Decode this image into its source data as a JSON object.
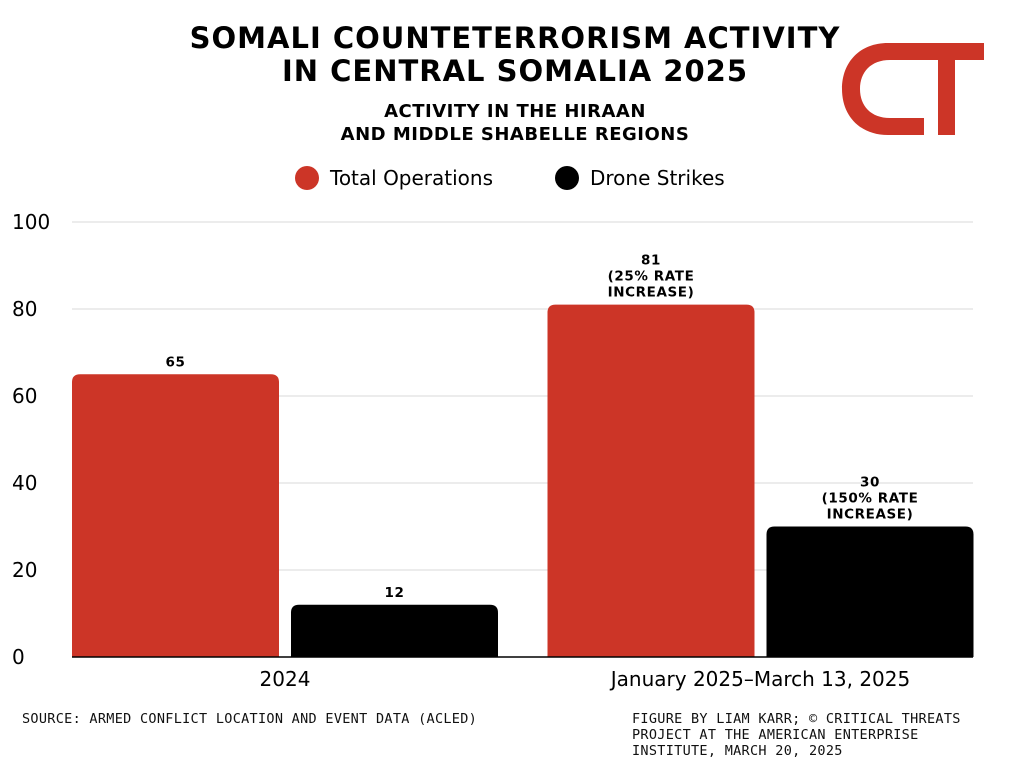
{
  "header": {
    "title_lines": [
      "SOMALI COUNTETERRORISM ACTIVITY",
      "IN CENTRAL SOMALIA 2025"
    ],
    "subtitle_lines": [
      "ACTIVITY IN THE HIRAAN",
      "AND MIDDLE SHABELLE REGIONS"
    ],
    "logo_text": "CT"
  },
  "colors": {
    "total_operations": "#cc3527",
    "drone_strikes": "#000000",
    "gridline": "#d9d9d9",
    "logo": "#cc3527"
  },
  "chart_data": {
    "type": "bar",
    "title": "SOMALI COUNTETERRORISM ACTIVITY IN CENTRAL SOMALIA 2025",
    "subtitle": "ACTIVITY IN THE HIRAAN AND MIDDLE SHABELLE REGIONS",
    "categories": [
      "2024",
      "January 2025–March 13, 2025"
    ],
    "series": [
      {
        "name": "Total Operations",
        "color": "#cc3527",
        "values": [
          65,
          81
        ],
        "labels": [
          [
            "65"
          ],
          [
            "81",
            "(25% RATE",
            "INCREASE)"
          ]
        ]
      },
      {
        "name": "Drone Strikes",
        "color": "#000000",
        "values": [
          12,
          30
        ],
        "labels": [
          [
            "12"
          ],
          [
            "30",
            "(150% RATE",
            "INCREASE)"
          ]
        ]
      }
    ],
    "ylim": [
      0,
      100
    ],
    "yticks": [
      0,
      20,
      40,
      60,
      80,
      100
    ],
    "xlabel": "",
    "ylabel": "",
    "grid": true,
    "legend_position": "top-center"
  },
  "footer": {
    "source": "SOURCE: ARMED CONFLICT LOCATION AND EVENT DATA (ACLED)",
    "credit_lines": [
      "FIGURE BY LIAM KARR; © CRITICAL THREATS",
      "PROJECT AT THE AMERICAN ENTERPRISE",
      "INSTITUTE, MARCH 20, 2025"
    ]
  }
}
